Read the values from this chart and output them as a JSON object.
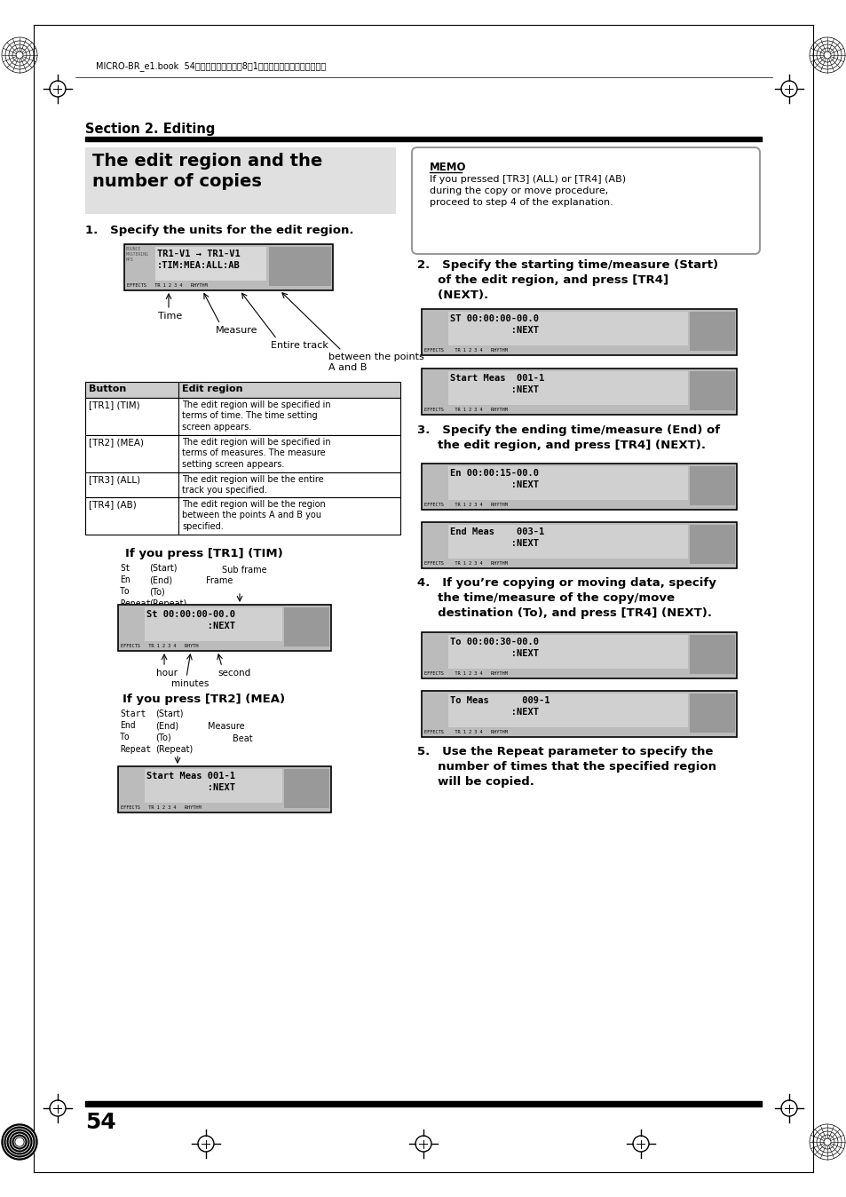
{
  "bg_color": "#ffffff",
  "page_num": "54",
  "header_text": "MICRO-BR_e1.book  54ページ　２００６年8月1日　火曜日　午後１２晎６分",
  "section_title": "Section 2. Editing",
  "box_title": "The edit region and the\nnumber of copies",
  "step1_title": "1.   Specify the units for the edit region.",
  "lcd1_line1": "TR1-V1 → TR1-V1",
  "lcd1_line2": ":TIM:MEA:ALL:AB",
  "time_label": "Time",
  "measure_label": "Measure",
  "entire_track_label": "Entire track",
  "ab_label": "between the points\nA and B",
  "table_rows": [
    [
      "[TR1] (TIM)",
      "The edit region will be specified in\nterms of time. The time setting\nscreen appears."
    ],
    [
      "[TR2] (MEA)",
      "The edit region will be specified in\nterms of measures. The measure\nsetting screen appears."
    ],
    [
      "[TR3] (ALL)",
      "The edit region will be the entire\ntrack you specified."
    ],
    [
      "[TR4] (AB)",
      "The edit region will be the region\nbetween the points A and B you\nspecified."
    ]
  ],
  "tim_title": "If you press [TR1] (TIM)",
  "mea_title": "If you press [TR2] (MEA)",
  "memo_text": "If you pressed [TR3] (ALL) or [TR4] (AB)\nduring the copy or move procedure,\nproceed to step 4 of the explanation.",
  "step2_title": "2.   Specify the starting time/measure (Start)\n     of the edit region, and press [TR4]\n     (NEXT).",
  "step3_title": "3.   Specify the ending time/measure (End) of\n     the edit region, and press [TR4] (NEXT).",
  "step4_title": "4.   If you’re copying or moving data, specify\n     the time/measure of the copy/move\n     destination (To), and press [TR4] (NEXT).",
  "step5_title": "5.   Use the Repeat parameter to specify the\n     number of times that the specified region\n     will be copied."
}
